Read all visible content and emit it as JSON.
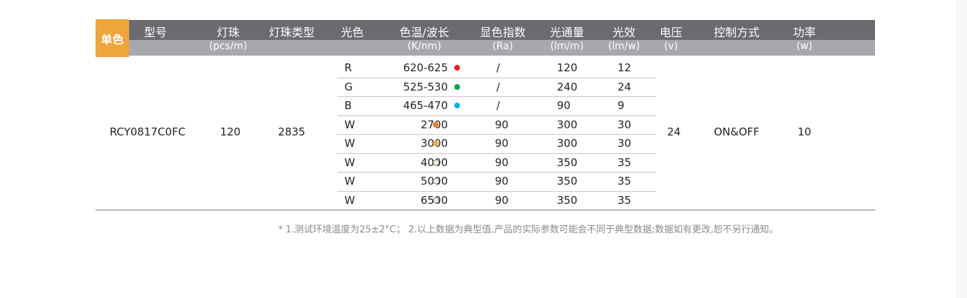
{
  "badge": "单色",
  "headers": [
    {
      "title": "型号",
      "unit": ""
    },
    {
      "title": "灯珠",
      "unit": "(pcs/m)"
    },
    {
      "title": "灯珠类型",
      "unit": ""
    },
    {
      "title": "光色",
      "unit": ""
    },
    {
      "title": "色温/波长",
      "unit": "(K/nm)"
    },
    {
      "title": "显色指数",
      "unit": "(Ra)"
    },
    {
      "title": "光通量",
      "unit": "(lm/m)"
    },
    {
      "title": "光效",
      "unit": "(lm/w)"
    },
    {
      "title": "电压",
      "unit": "(v)"
    },
    {
      "title": "控制方式",
      "unit": ""
    },
    {
      "title": "功率",
      "unit": "(w)"
    }
  ],
  "product": {
    "model": "RCY0817C0FC",
    "leds": "120",
    "led_type": "2835",
    "voltage": "24",
    "control": "ON&OFF",
    "power": "10"
  },
  "rows": [
    {
      "color": "R",
      "temp": "620-625",
      "dot": "#ed1c24",
      "ra": "/",
      "flux": "120",
      "eff": "12"
    },
    {
      "color": "G",
      "temp": "525-530",
      "dot": "#00a651",
      "ra": "/",
      "flux": "240",
      "eff": "24"
    },
    {
      "color": "B",
      "temp": "465-470",
      "dot": "#00aeef",
      "ra": "/",
      "flux": "90",
      "eff": "9"
    },
    {
      "color": "W",
      "temp": "2700",
      "dot": "#e47c32",
      "ra": "90",
      "flux": "300",
      "eff": "30"
    },
    {
      "color": "W",
      "temp": "3000",
      "dot": "#e0b040",
      "ra": "90",
      "flux": "300",
      "eff": "30"
    },
    {
      "color": "W",
      "temp": "4000",
      "dot": "#eeefd8",
      "ra": "90",
      "flux": "350",
      "eff": "35"
    },
    {
      "color": "W",
      "temp": "5000",
      "dot": "#f6f6f2",
      "ra": "90",
      "flux": "350",
      "eff": "35"
    },
    {
      "color": "W",
      "temp": "6500",
      "dot": "#e6e8e8",
      "ra": "90",
      "flux": "350",
      "eff": "35"
    }
  ],
  "note": "* 1.测试环境温度为25±2°C； 2.以上数据为典型值,产品的实际参数可能会不同于典型数据;数据如有更改,恕不另行通知。"
}
